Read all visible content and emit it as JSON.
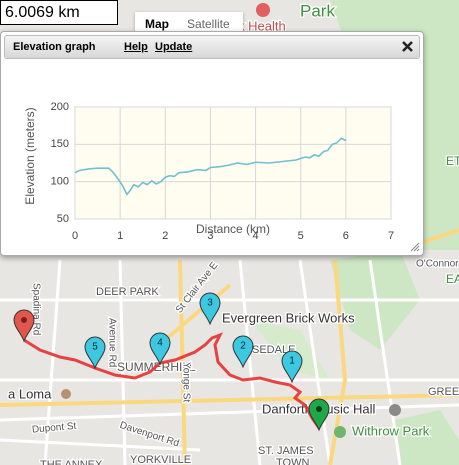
{
  "distance": "6.0069 km",
  "map_tabs": [
    "Map",
    "Satellite"
  ],
  "panel": {
    "title": "Elevation graph",
    "links": [
      "Help",
      "Update"
    ]
  },
  "chart_data": {
    "type": "line",
    "x_label": "Distance (km)",
    "y_label": "Elevation (meters)",
    "x": [
      0,
      0.1,
      0.3,
      0.5,
      0.75,
      0.85,
      0.95,
      1.05,
      1.15,
      1.22,
      1.3,
      1.4,
      1.5,
      1.6,
      1.7,
      1.8,
      1.9,
      2.0,
      2.1,
      2.2,
      2.3,
      2.5,
      2.7,
      2.9,
      3.0,
      3.2,
      3.4,
      3.6,
      3.8,
      4.0,
      4.3,
      4.6,
      4.9,
      5.0,
      5.1,
      5.2,
      5.3,
      5.4,
      5.5,
      5.6,
      5.7,
      5.8,
      5.9,
      6.0069
    ],
    "values": [
      112,
      115,
      117,
      118,
      118,
      112,
      104,
      95,
      83,
      88,
      96,
      93,
      99,
      96,
      101,
      97,
      100,
      106,
      108,
      107,
      112,
      113,
      116,
      115,
      119,
      120,
      122,
      125,
      123,
      126,
      125,
      127,
      129,
      131,
      133,
      132,
      136,
      134,
      140,
      142,
      150,
      152,
      158,
      155
    ],
    "color": "#72bfd1",
    "xlim": [
      0,
      7
    ],
    "xticks": [
      0,
      1,
      2,
      3,
      4,
      5,
      6,
      7
    ],
    "ylim": [
      50,
      200
    ],
    "yticks": [
      50,
      100,
      150,
      200
    ],
    "grid": true
  },
  "map_labels": [
    "Park",
    "k Health",
    "DEER PARK",
    "St Clair Ave E",
    "Evergreen Brick Works",
    "SEDALE",
    "SUMMERHILL",
    "Avenue Rd",
    "Yonge St",
    "Spadina Rd",
    "a Loma",
    "Dupont St",
    "Davenport Rd",
    "Danforth Music Hall",
    "Withrow Park",
    "ST. JAMES",
    "TOWN",
    "YORKVILLE",
    "THE ANNEX",
    "O'Connor",
    "GREE",
    "EA",
    "ET"
  ],
  "markers": [
    "1",
    "2",
    "3",
    "4",
    "5"
  ]
}
